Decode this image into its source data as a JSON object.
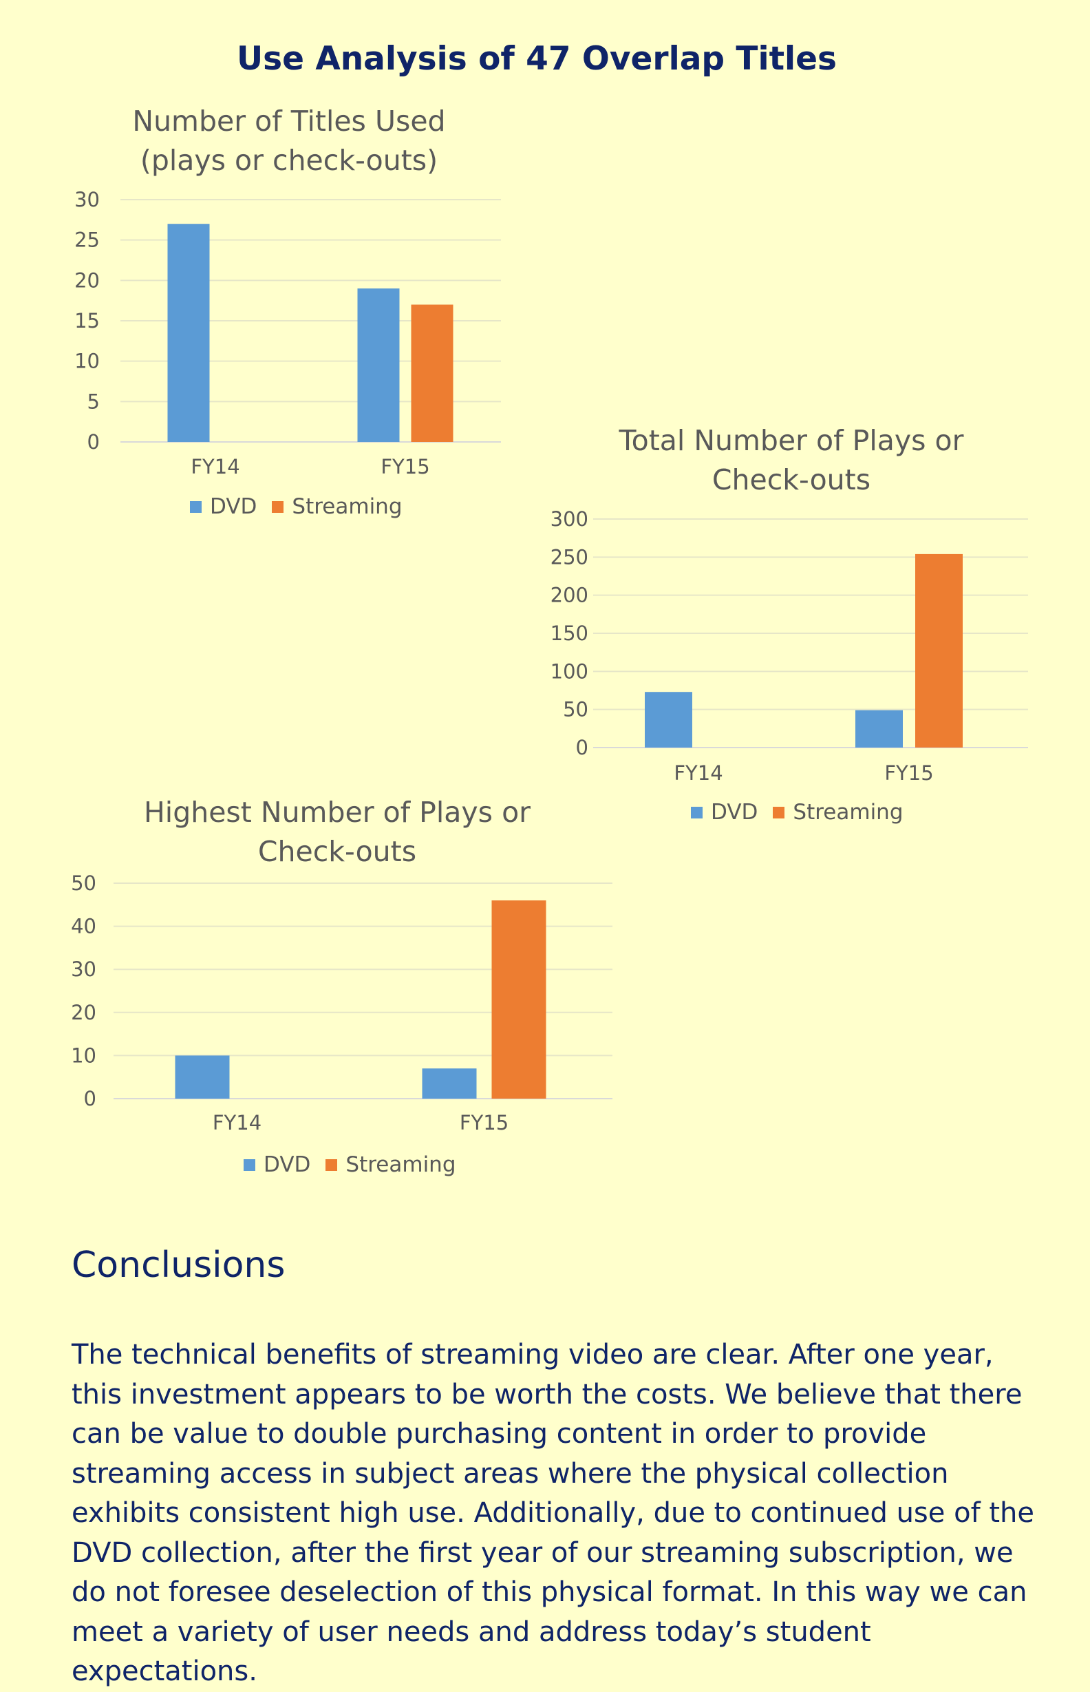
{
  "page_title": "Use Analysis of 47 Overlap Titles",
  "colors": {
    "dvd": "#5b9bd5",
    "streaming": "#ed7d31",
    "background": "#ffffcc",
    "text": "#0f2468"
  },
  "chart_data": [
    {
      "type": "bar",
      "title_lines": [
        "Number of Titles Used",
        "(plays or check-outs)"
      ],
      "categories": [
        "FY14",
        "FY15"
      ],
      "series": [
        {
          "name": "DVD",
          "values": [
            27,
            19
          ]
        },
        {
          "name": "Streaming",
          "values": [
            null,
            17
          ]
        }
      ],
      "ylim": [
        0,
        30
      ],
      "yticks": [
        0,
        5,
        10,
        15,
        20,
        25,
        30
      ],
      "grid": true,
      "legend": "bottom"
    },
    {
      "type": "bar",
      "title_lines": [
        "Total Number of Plays or",
        "Check-outs"
      ],
      "categories": [
        "FY14",
        "FY15"
      ],
      "series": [
        {
          "name": "DVD",
          "values": [
            73,
            49
          ]
        },
        {
          "name": "Streaming",
          "values": [
            null,
            254
          ]
        }
      ],
      "ylim": [
        0,
        300
      ],
      "yticks": [
        0,
        50,
        100,
        150,
        200,
        250,
        300
      ],
      "grid": true,
      "legend": "bottom"
    },
    {
      "type": "bar",
      "title_lines": [
        "Highest Number of Plays or",
        "Check-outs"
      ],
      "categories": [
        "FY14",
        "FY15"
      ],
      "series": [
        {
          "name": "DVD",
          "values": [
            10,
            7
          ]
        },
        {
          "name": "Streaming",
          "values": [
            null,
            46
          ]
        }
      ],
      "ylim": [
        0,
        50
      ],
      "yticks": [
        0,
        10,
        20,
        30,
        40,
        50
      ],
      "grid": true,
      "legend": "bottom"
    }
  ],
  "conclusions": {
    "heading": "Conclusions",
    "lines": [
      "The technical benefits of streaming video are clear. After one year,",
      "this investment appears to be worth the costs. We believe that there",
      "can be value to double purchasing content in order to provide",
      "streaming access in subject areas where the physical collection",
      "exhibits consistent high use. Additionally, due to continued use of the",
      "DVD collection, after the first year of our streaming subscription, we",
      "do not foresee deselection of this physical format. In this way we can",
      "meet a variety of user needs and address today’s student expectations."
    ]
  }
}
